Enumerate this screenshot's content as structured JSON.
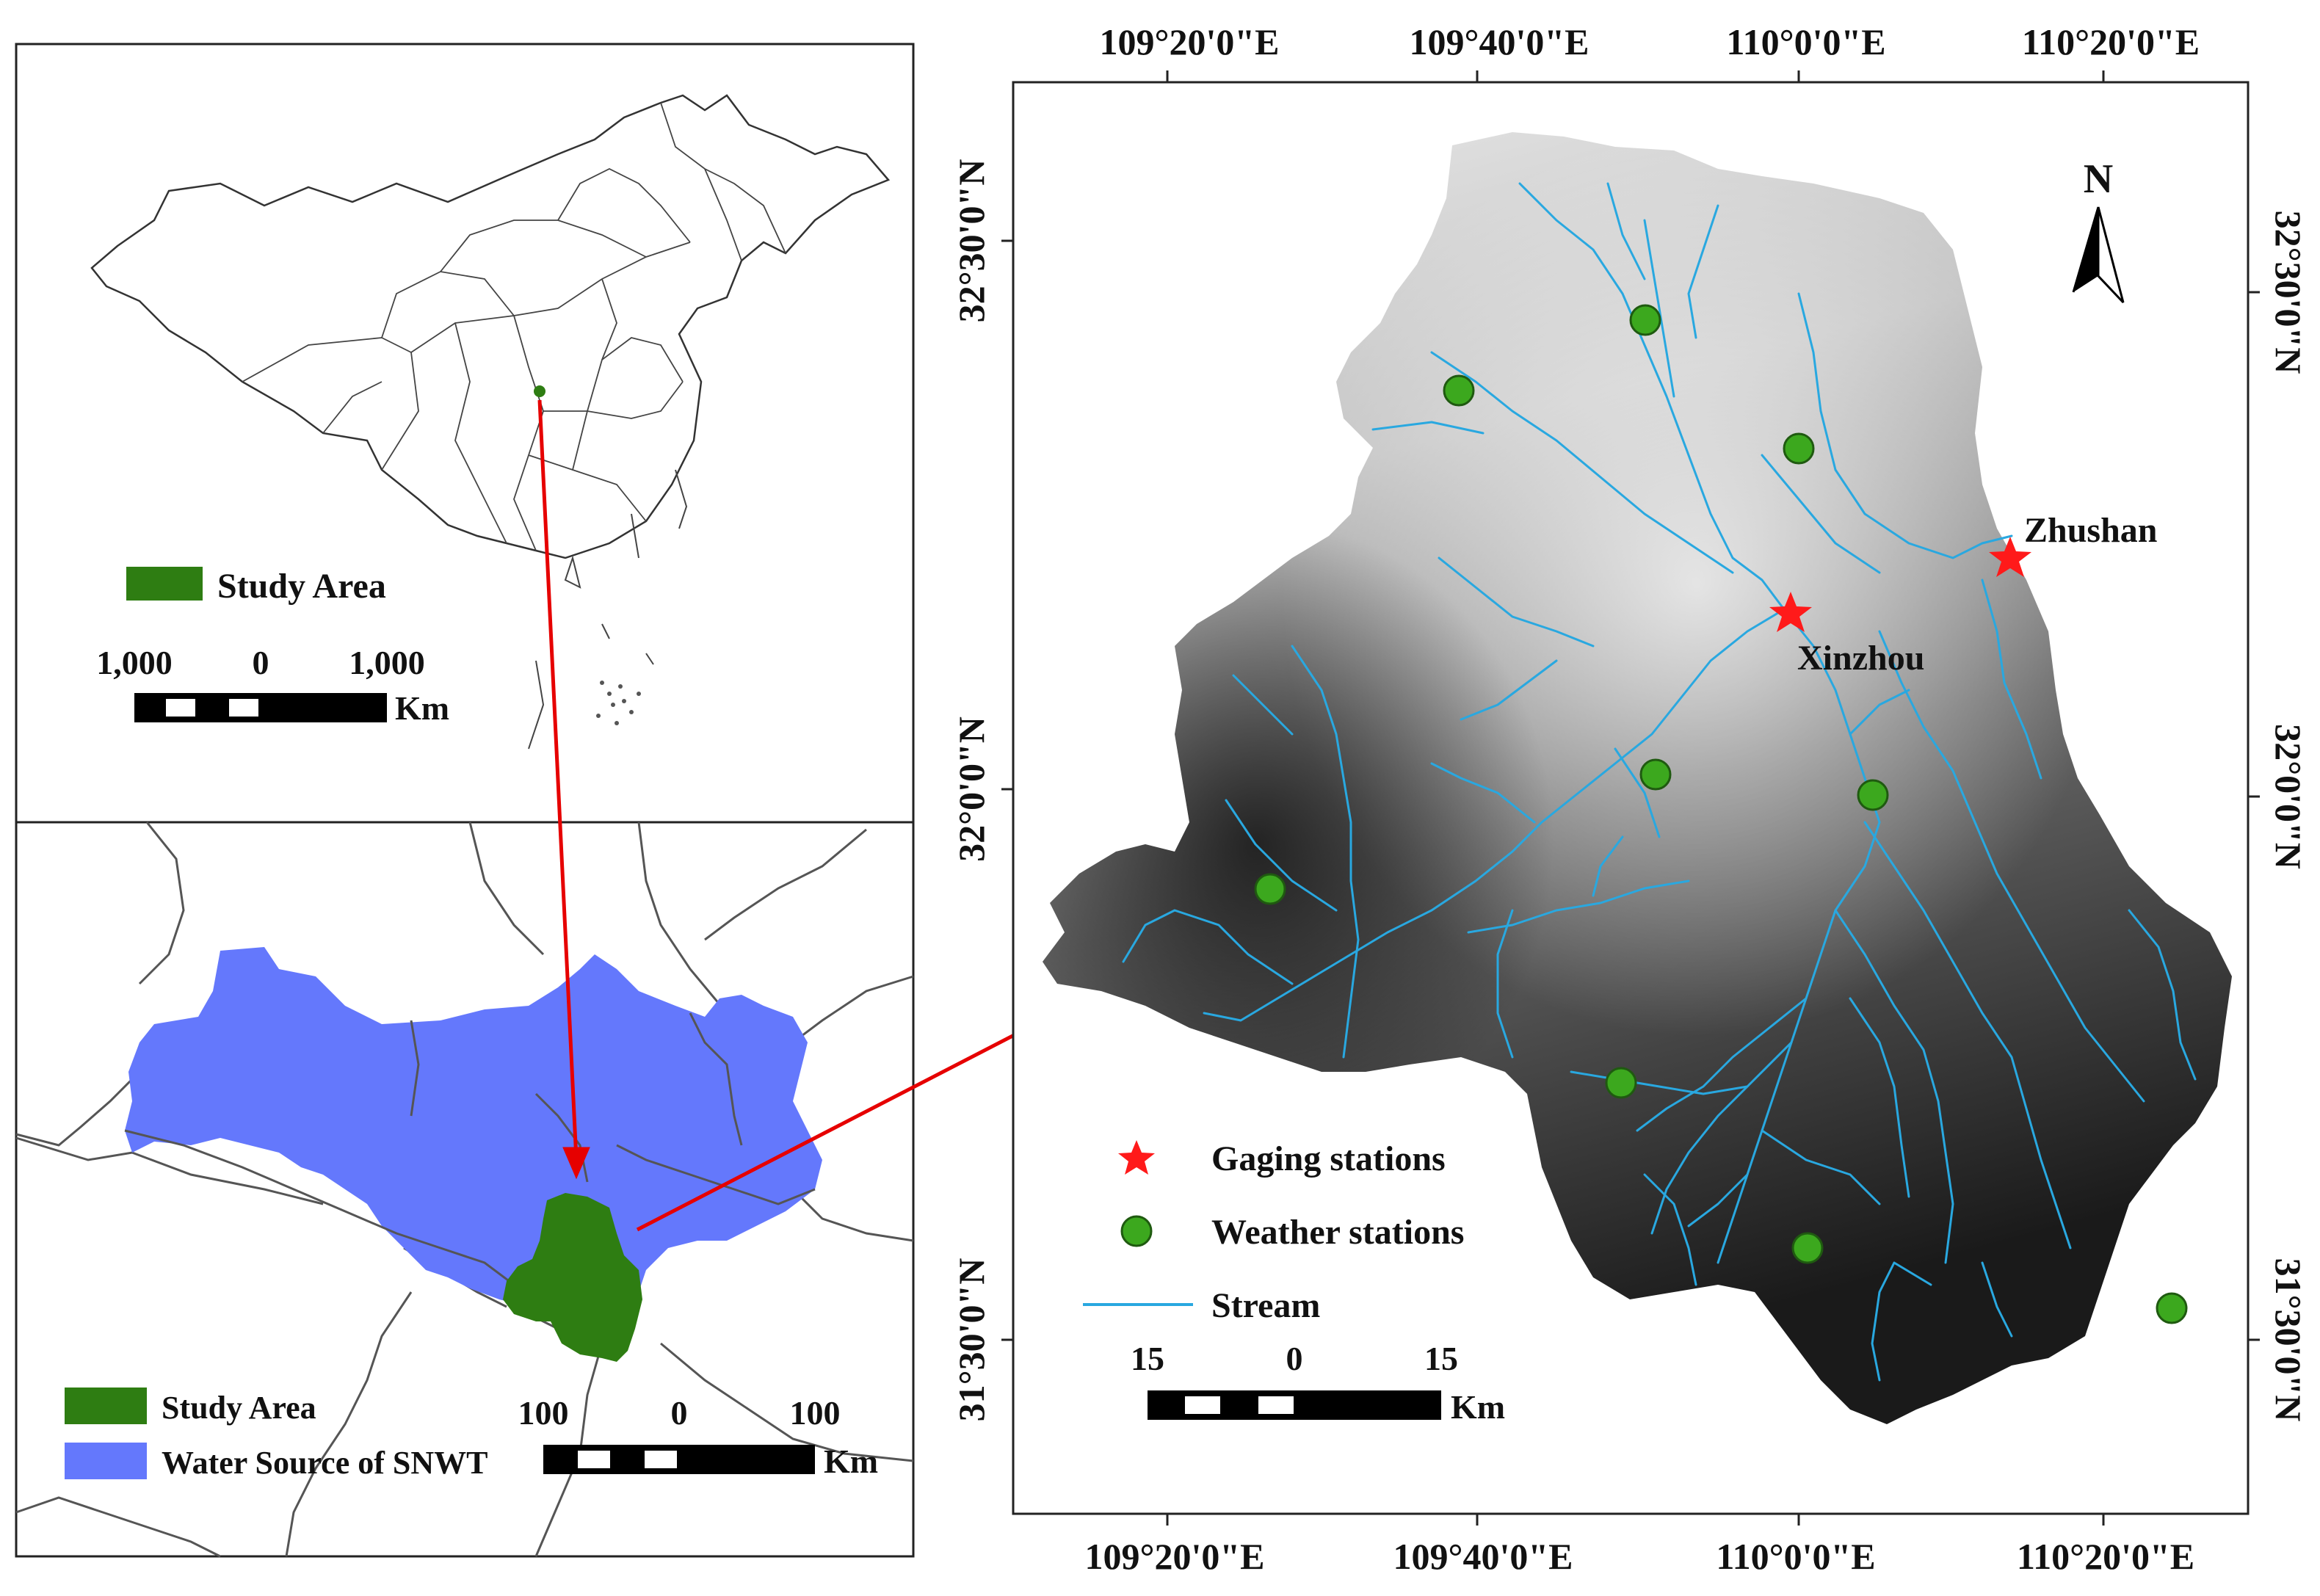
{
  "colors": {
    "study_area": "#2e7d12",
    "snwt": "#6478fc",
    "stream": "#29a8e0",
    "gaging": "#ff1a1a",
    "weather": "#3ca81e"
  },
  "china_panel": {
    "legend_label": "Study Area",
    "scale_labels": [
      "1,000",
      "0",
      "1,000"
    ],
    "scale_unit": "Km"
  },
  "region_panel": {
    "legend": [
      {
        "label": "Study Area"
      },
      {
        "label": "Water Source of SNWT"
      }
    ],
    "scale_labels": [
      "100",
      "0",
      "100"
    ],
    "scale_unit": "Km"
  },
  "main_map": {
    "top_ticks": [
      "109°20'0\"E",
      "109°40'0\"E",
      "110°0'0\"E",
      "110°20'0\"E"
    ],
    "bottom_ticks": [
      "109°20'0\"E",
      "109°40'0\"E",
      "110°0'0\"E",
      "110°20'0\"E"
    ],
    "left_ticks": [
      "32°30'0\"N",
      "32°0'0\"N",
      "31°30'0\"N"
    ],
    "right_ticks": [
      "32°30'0\"N",
      "32°0'0\"N",
      "31°30'0\"N"
    ],
    "north_label": "N",
    "gaging_stations": [
      "Zhushan",
      "Xinzhou"
    ],
    "legend": {
      "gaging": "Gaging stations",
      "weather": "Weather stations",
      "stream": "Stream"
    },
    "scale_labels": [
      "15",
      "0",
      "15"
    ],
    "scale_unit": "Km"
  }
}
